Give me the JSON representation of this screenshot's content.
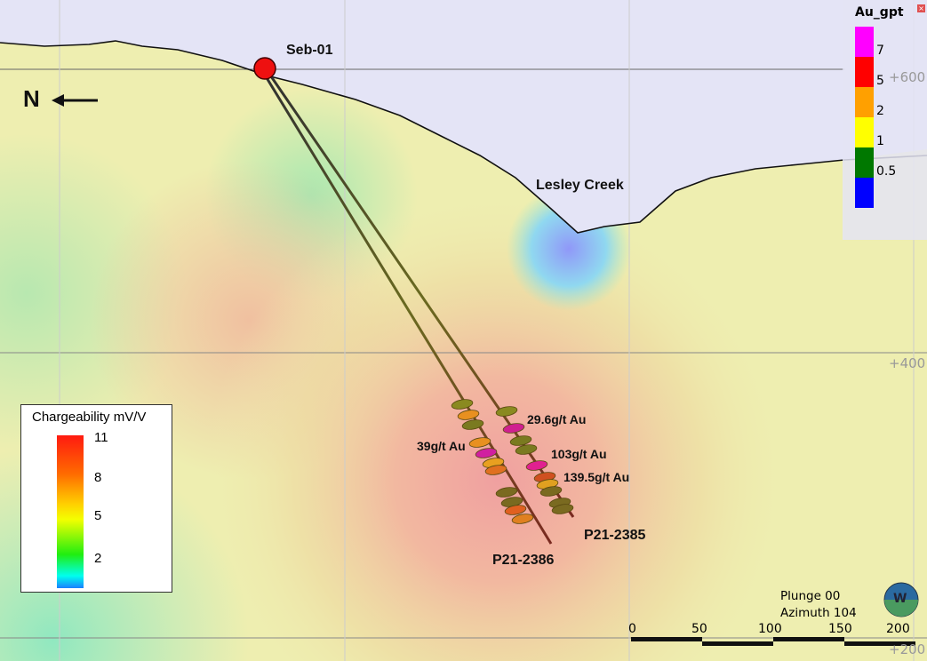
{
  "collar_label": "Seb-01",
  "creek_label": "Lesley Creek",
  "north_label": "N",
  "elevations": [
    "+600",
    "+400",
    "+200"
  ],
  "holes": [
    {
      "name": "P21-2386"
    },
    {
      "name": "P21-2385"
    }
  ],
  "assays": [
    "29.6g/t Au",
    "39g/t Au",
    "103g/t Au",
    "139.5g/t Au"
  ],
  "chargeability_legend": {
    "title": "Chargeability mV/V",
    "ticks": [
      "11",
      "8",
      "5",
      "2"
    ]
  },
  "au_legend": {
    "title": "Au_gpt",
    "close": "×",
    "ticks": [
      "7",
      "5",
      "2",
      "1",
      "0.5"
    ],
    "colors": [
      "#ff00ff",
      "#ff0000",
      "#ffa000",
      "#ffff00",
      "#007800",
      "#0000ff"
    ]
  },
  "scale_bar": {
    "ticks": [
      "0",
      "50",
      "100",
      "150",
      "200"
    ]
  },
  "view": {
    "plunge": "Plunge 00",
    "azimuth": "Azimuth 104",
    "compass": "W"
  }
}
